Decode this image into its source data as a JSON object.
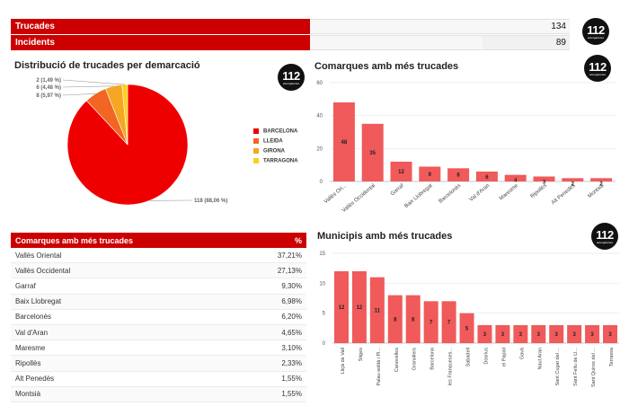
{
  "stats": [
    {
      "label": "Trucades",
      "value": "134",
      "fill": 1.0
    },
    {
      "label": "Incidents",
      "value": "89",
      "fill": 0.664
    }
  ],
  "badge": {
    "number": "112",
    "sub": "emergències"
  },
  "pie_section": {
    "title": "Distribució de trucades per demarcació"
  },
  "comarques_section": {
    "title": "Comarques amb més trucades"
  },
  "municipis_section": {
    "title": "Municipis amb més trucades"
  },
  "table": {
    "header_label": "Comarques amb més trucades",
    "header_pct": "%",
    "rows": [
      {
        "name": "Vallès Oriental",
        "pct": "37,21%"
      },
      {
        "name": "Vallès Occidental",
        "pct": "27,13%"
      },
      {
        "name": "Garraf",
        "pct": "9,30%"
      },
      {
        "name": "Baix Llobregat",
        "pct": "6,98%"
      },
      {
        "name": "Barcelonès",
        "pct": "6,20%"
      },
      {
        "name": "Val d'Aran",
        "pct": "4,65%"
      },
      {
        "name": "Maresme",
        "pct": "3,10%"
      },
      {
        "name": "Ripollès",
        "pct": "2,33%"
      },
      {
        "name": "Alt Penedès",
        "pct": "1,55%"
      },
      {
        "name": "Montsià",
        "pct": "1,55%"
      }
    ]
  },
  "colors": {
    "accent": "#cc0000",
    "bar": "#f05a5a",
    "barcelona": "#ee0000",
    "lleida": "#f26522",
    "girona": "#f5a623",
    "tarragona": "#fcd116"
  },
  "chart_data": [
    {
      "type": "pie",
      "title": "Distribució de trucades per demarcació",
      "categories": [
        "BARCELONA",
        "LLEIDA",
        "GIRONA",
        "TARRAGONA"
      ],
      "values": [
        118,
        8,
        6,
        2
      ],
      "data_labels": [
        "118 (88,06 %)",
        "8 (5,97 %)",
        "6 (4,48 %)",
        "2 (1,49 %)"
      ],
      "colors": [
        "#ee0000",
        "#f26522",
        "#f5a623",
        "#fcd116"
      ],
      "legend": "right"
    },
    {
      "type": "bar",
      "title": "Comarques amb més trucades",
      "categories": [
        "Vallès Ori...",
        "Vallès Occidental",
        "Garraf",
        "Baix Llobregat",
        "Barcelonès",
        "Val d'Aran",
        "Maresme",
        "Ripollès",
        "Alt Penedès",
        "Montsià"
      ],
      "values": [
        48,
        35,
        12,
        9,
        8,
        6,
        4,
        3,
        2,
        2
      ],
      "ylim": [
        0,
        60
      ],
      "yticks": [
        0,
        20,
        40,
        60
      ],
      "grid": true
    },
    {
      "type": "bar",
      "title": "Municipis amb més trucades",
      "categories": [
        "Lliçà de Vall",
        "Sitges",
        "Palau-solità i Pl...",
        "Canovelles",
        "Granollers",
        "Barcelona",
        "les Franqueses...",
        "Sabadell",
        "Dosrius",
        "el Papiol",
        "Gavà",
        "Naut Aran",
        "Sant Cugat del ...",
        "Sant Feliu de Ll...",
        "Sant Quirze del ...",
        "Terrassa"
      ],
      "values": [
        12,
        12,
        11,
        8,
        8,
        7,
        7,
        5,
        3,
        3,
        3,
        3,
        3,
        3,
        3,
        3
      ],
      "ylim": [
        0,
        15
      ],
      "yticks": [
        0,
        5,
        10,
        15
      ],
      "grid": true
    }
  ]
}
